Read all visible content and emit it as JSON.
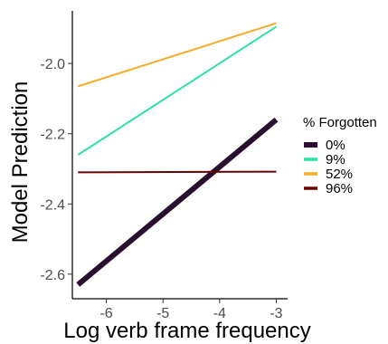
{
  "chart_data": {
    "type": "line",
    "xlabel": "Log verb frame frequency",
    "ylabel": "Model Prediction",
    "xlim": [
      -6.6,
      -2.8
    ],
    "ylim": [
      -2.67,
      -1.85
    ],
    "x_ticks": [
      -6,
      -5,
      -4,
      -3
    ],
    "x_tick_labels": [
      "-6",
      "-5",
      "-4",
      "-3"
    ],
    "y_ticks": [
      -2.6,
      -2.4,
      -2.2,
      -2.0
    ],
    "y_tick_labels": [
      "-2.6",
      "-2.4",
      "-2.2",
      "-2.0"
    ],
    "grid": false,
    "legend_position": "right",
    "legend_title": "% Forgotten",
    "series": [
      {
        "name": "0%",
        "color": "#2a1030",
        "line_width": "thick",
        "x": [
          -6.5,
          -3.0
        ],
        "y": [
          -2.63,
          -2.16
        ]
      },
      {
        "name": "9%",
        "color": "#2fe0a6",
        "line_width": "normal",
        "x": [
          -6.5,
          -3.0
        ],
        "y": [
          -2.26,
          -1.895
        ]
      },
      {
        "name": "52%",
        "color": "#f5ad2a",
        "line_width": "normal",
        "x": [
          -6.5,
          -3.0
        ],
        "y": [
          -2.065,
          -1.885
        ]
      },
      {
        "name": "96%",
        "color": "#6b0000",
        "line_width": "normal",
        "x": [
          -6.5,
          -3.0
        ],
        "y": [
          -2.31,
          -2.308
        ]
      }
    ]
  }
}
